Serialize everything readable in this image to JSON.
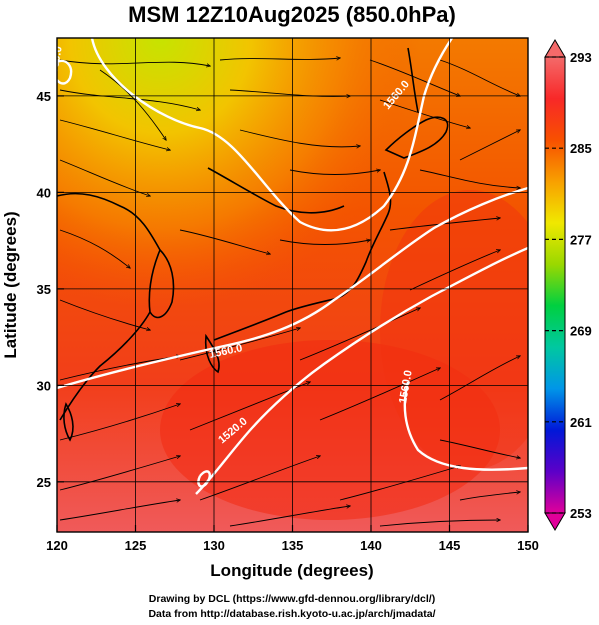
{
  "title": "MSM 12Z10Aug2025 (850.0hPa)",
  "xaxis": {
    "label": "Longitude (degrees)",
    "range": [
      120,
      150
    ],
    "ticks": [
      120,
      125,
      130,
      135,
      140,
      145,
      150
    ],
    "tick_labels": [
      "120",
      "125",
      "130",
      "135",
      "140",
      "145",
      "150"
    ]
  },
  "yaxis": {
    "label": "Latitude  (degrees)",
    "range": [
      22.4,
      48.0
    ],
    "ticks": [
      25,
      30,
      35,
      40,
      45
    ],
    "tick_labels": [
      "25",
      "30",
      "35",
      "40",
      "45"
    ]
  },
  "colorbar": {
    "min": 253,
    "max": 293,
    "tick_labels": [
      "293",
      "285",
      "277",
      "269",
      "261",
      "253"
    ],
    "tick_values": [
      293,
      285,
      277,
      269,
      261,
      253
    ],
    "colors": [
      "#e0009a",
      "#5c00c8",
      "#0018d8",
      "#0096e8",
      "#00c8a0",
      "#00d040",
      "#9ad800",
      "#f0e800",
      "#f8a000",
      "#f85000",
      "#f82828",
      "#f46a6a"
    ]
  },
  "contours": [
    {
      "label": "1560.0"
    },
    {
      "label": "1520.0"
    },
    {
      "label": "1560.0"
    },
    {
      "label": "1560.0"
    },
    {
      "label": "1560.0"
    }
  ],
  "credits": {
    "line1": "Drawing by DCL (https://www.gfd-dennou.org/library/dcl/)",
    "line2": "Data from http://database.rish.kyoto-u.ac.jp/arch/jmadata/"
  }
}
